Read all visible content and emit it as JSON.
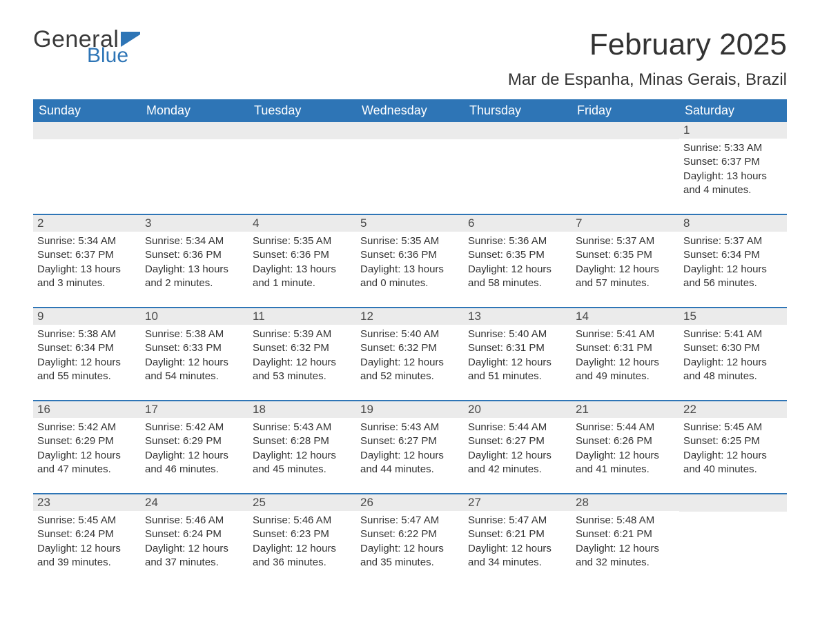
{
  "logo": {
    "general": "General",
    "blue": "Blue",
    "flag_color": "#2e75b6"
  },
  "title": "February 2025",
  "subtitle": "Mar de Espanha, Minas Gerais, Brazil",
  "header_bg": "#2e75b6",
  "header_fg": "#ffffff",
  "daynum_bg": "#ebebeb",
  "text_color": "#333333",
  "weekdays": [
    "Sunday",
    "Monday",
    "Tuesday",
    "Wednesday",
    "Thursday",
    "Friday",
    "Saturday"
  ],
  "weeks": [
    [
      {
        "blank": true
      },
      {
        "blank": true
      },
      {
        "blank": true
      },
      {
        "blank": true
      },
      {
        "blank": true
      },
      {
        "blank": true
      },
      {
        "day": "1",
        "sunrise": "Sunrise: 5:33 AM",
        "sunset": "Sunset: 6:37 PM",
        "daylight": "Daylight: 13 hours and 4 minutes."
      }
    ],
    [
      {
        "day": "2",
        "sunrise": "Sunrise: 5:34 AM",
        "sunset": "Sunset: 6:37 PM",
        "daylight": "Daylight: 13 hours and 3 minutes."
      },
      {
        "day": "3",
        "sunrise": "Sunrise: 5:34 AM",
        "sunset": "Sunset: 6:36 PM",
        "daylight": "Daylight: 13 hours and 2 minutes."
      },
      {
        "day": "4",
        "sunrise": "Sunrise: 5:35 AM",
        "sunset": "Sunset: 6:36 PM",
        "daylight": "Daylight: 13 hours and 1 minute."
      },
      {
        "day": "5",
        "sunrise": "Sunrise: 5:35 AM",
        "sunset": "Sunset: 6:36 PM",
        "daylight": "Daylight: 13 hours and 0 minutes."
      },
      {
        "day": "6",
        "sunrise": "Sunrise: 5:36 AM",
        "sunset": "Sunset: 6:35 PM",
        "daylight": "Daylight: 12 hours and 58 minutes."
      },
      {
        "day": "7",
        "sunrise": "Sunrise: 5:37 AM",
        "sunset": "Sunset: 6:35 PM",
        "daylight": "Daylight: 12 hours and 57 minutes."
      },
      {
        "day": "8",
        "sunrise": "Sunrise: 5:37 AM",
        "sunset": "Sunset: 6:34 PM",
        "daylight": "Daylight: 12 hours and 56 minutes."
      }
    ],
    [
      {
        "day": "9",
        "sunrise": "Sunrise: 5:38 AM",
        "sunset": "Sunset: 6:34 PM",
        "daylight": "Daylight: 12 hours and 55 minutes."
      },
      {
        "day": "10",
        "sunrise": "Sunrise: 5:38 AM",
        "sunset": "Sunset: 6:33 PM",
        "daylight": "Daylight: 12 hours and 54 minutes."
      },
      {
        "day": "11",
        "sunrise": "Sunrise: 5:39 AM",
        "sunset": "Sunset: 6:32 PM",
        "daylight": "Daylight: 12 hours and 53 minutes."
      },
      {
        "day": "12",
        "sunrise": "Sunrise: 5:40 AM",
        "sunset": "Sunset: 6:32 PM",
        "daylight": "Daylight: 12 hours and 52 minutes."
      },
      {
        "day": "13",
        "sunrise": "Sunrise: 5:40 AM",
        "sunset": "Sunset: 6:31 PM",
        "daylight": "Daylight: 12 hours and 51 minutes."
      },
      {
        "day": "14",
        "sunrise": "Sunrise: 5:41 AM",
        "sunset": "Sunset: 6:31 PM",
        "daylight": "Daylight: 12 hours and 49 minutes."
      },
      {
        "day": "15",
        "sunrise": "Sunrise: 5:41 AM",
        "sunset": "Sunset: 6:30 PM",
        "daylight": "Daylight: 12 hours and 48 minutes."
      }
    ],
    [
      {
        "day": "16",
        "sunrise": "Sunrise: 5:42 AM",
        "sunset": "Sunset: 6:29 PM",
        "daylight": "Daylight: 12 hours and 47 minutes."
      },
      {
        "day": "17",
        "sunrise": "Sunrise: 5:42 AM",
        "sunset": "Sunset: 6:29 PM",
        "daylight": "Daylight: 12 hours and 46 minutes."
      },
      {
        "day": "18",
        "sunrise": "Sunrise: 5:43 AM",
        "sunset": "Sunset: 6:28 PM",
        "daylight": "Daylight: 12 hours and 45 minutes."
      },
      {
        "day": "19",
        "sunrise": "Sunrise: 5:43 AM",
        "sunset": "Sunset: 6:27 PM",
        "daylight": "Daylight: 12 hours and 44 minutes."
      },
      {
        "day": "20",
        "sunrise": "Sunrise: 5:44 AM",
        "sunset": "Sunset: 6:27 PM",
        "daylight": "Daylight: 12 hours and 42 minutes."
      },
      {
        "day": "21",
        "sunrise": "Sunrise: 5:44 AM",
        "sunset": "Sunset: 6:26 PM",
        "daylight": "Daylight: 12 hours and 41 minutes."
      },
      {
        "day": "22",
        "sunrise": "Sunrise: 5:45 AM",
        "sunset": "Sunset: 6:25 PM",
        "daylight": "Daylight: 12 hours and 40 minutes."
      }
    ],
    [
      {
        "day": "23",
        "sunrise": "Sunrise: 5:45 AM",
        "sunset": "Sunset: 6:24 PM",
        "daylight": "Daylight: 12 hours and 39 minutes."
      },
      {
        "day": "24",
        "sunrise": "Sunrise: 5:46 AM",
        "sunset": "Sunset: 6:24 PM",
        "daylight": "Daylight: 12 hours and 37 minutes."
      },
      {
        "day": "25",
        "sunrise": "Sunrise: 5:46 AM",
        "sunset": "Sunset: 6:23 PM",
        "daylight": "Daylight: 12 hours and 36 minutes."
      },
      {
        "day": "26",
        "sunrise": "Sunrise: 5:47 AM",
        "sunset": "Sunset: 6:22 PM",
        "daylight": "Daylight: 12 hours and 35 minutes."
      },
      {
        "day": "27",
        "sunrise": "Sunrise: 5:47 AM",
        "sunset": "Sunset: 6:21 PM",
        "daylight": "Daylight: 12 hours and 34 minutes."
      },
      {
        "day": "28",
        "sunrise": "Sunrise: 5:48 AM",
        "sunset": "Sunset: 6:21 PM",
        "daylight": "Daylight: 12 hours and 32 minutes."
      },
      {
        "blank": true
      }
    ]
  ]
}
